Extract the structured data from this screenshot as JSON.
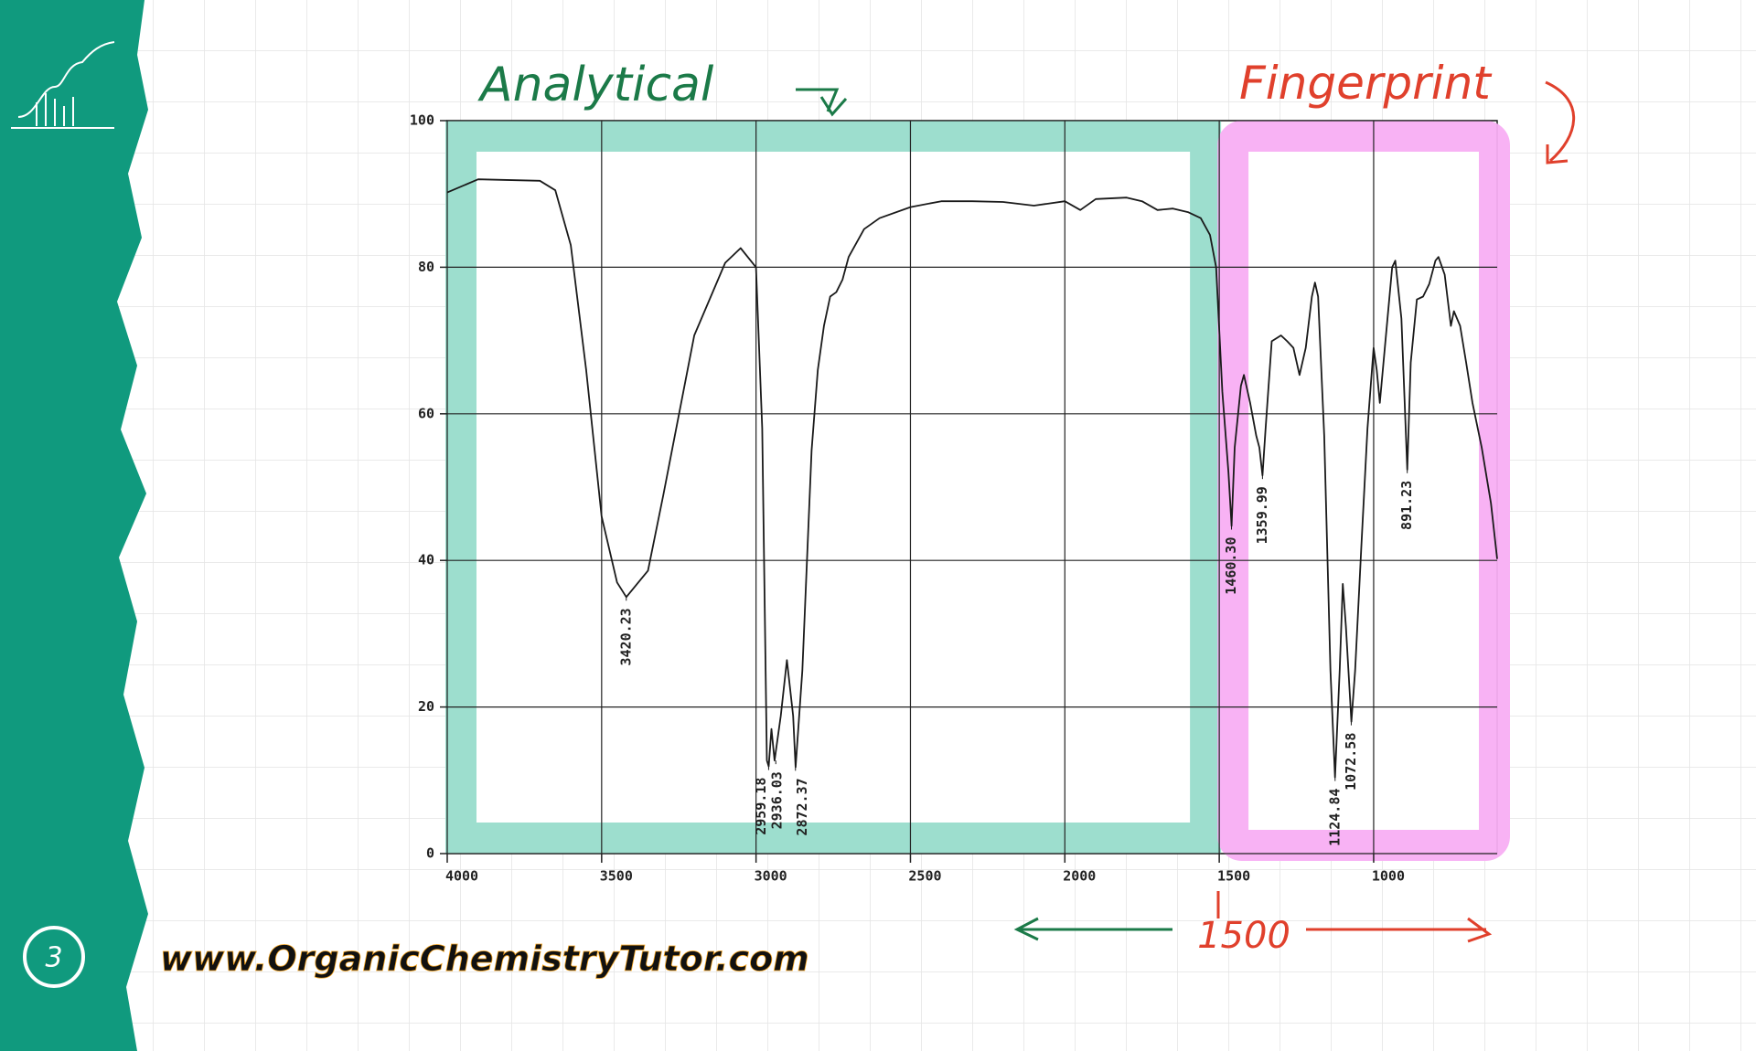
{
  "chart_data": {
    "type": "line",
    "title": "Analytical",
    "subtitle": "Fingerprint",
    "x": [
      4000,
      3900,
      3700,
      3650,
      3600,
      3550,
      3500,
      3450,
      3420,
      3350,
      3300,
      3200,
      3100,
      3050,
      3000,
      2980,
      2965,
      2959,
      2950,
      2940,
      2920,
      2900,
      2880,
      2872,
      2850,
      2820,
      2800,
      2780,
      2760,
      2740,
      2720,
      2700,
      2650,
      2600,
      2500,
      2400,
      2300,
      2200,
      2100,
      2000,
      1950,
      1900,
      1800,
      1750,
      1700,
      1650,
      1600,
      1560,
      1530,
      1510,
      1490,
      1470,
      1460,
      1450,
      1430,
      1420,
      1400,
      1380,
      1370,
      1360,
      1350,
      1330,
      1300,
      1280,
      1260,
      1240,
      1220,
      1200,
      1190,
      1180,
      1160,
      1140,
      1125,
      1110,
      1100,
      1090,
      1072,
      1060,
      1040,
      1020,
      1000,
      990,
      980,
      960,
      940,
      930,
      910,
      891,
      880,
      860,
      840,
      820,
      800,
      790,
      770,
      750,
      740,
      720,
      700,
      680,
      650,
      620,
      600
    ],
    "values": [
      90.2,
      92,
      91.8,
      90.5,
      83,
      66,
      46,
      37,
      35,
      38.6,
      49,
      70.7,
      80.6,
      82.6,
      80,
      58,
      12.7,
      11.9,
      17,
      12.7,
      18.8,
      26.4,
      18.8,
      11.8,
      25,
      55,
      66,
      72,
      76,
      76.6,
      78.3,
      81.4,
      85.2,
      86.7,
      88.2,
      89,
      89,
      88.9,
      88.4,
      89,
      87.8,
      89.3,
      89.5,
      89,
      87.8,
      88,
      87.5,
      86.7,
      84.4,
      80,
      63,
      52,
      44.7,
      55.4,
      63.8,
      65.3,
      61.5,
      57,
      55.4,
      51.6,
      58,
      69.9,
      70.7,
      69.9,
      69,
      65.3,
      69,
      76,
      77.9,
      76,
      57,
      25,
      10.4,
      25,
      36.8,
      31,
      18,
      25,
      41.7,
      58,
      69,
      66,
      61.5,
      70.7,
      80,
      80.9,
      73,
      52.4,
      67,
      75.6,
      76,
      77.7,
      80.9,
      81.4,
      79,
      72,
      74,
      72,
      66.9,
      61.5,
      55.4,
      47.8,
      40.2
    ],
    "color": "#1a1a1a",
    "xlim": [
      4000,
      600
    ],
    "xticks": [
      4000,
      3500,
      3000,
      2500,
      2000,
      1500,
      1000
    ],
    "ylim": [
      0,
      100
    ],
    "yticks": [
      0,
      20,
      40,
      60,
      80,
      100
    ],
    "grid": true,
    "regions": [
      {
        "name": "Analytical",
        "from": 4000,
        "to": 1500,
        "color": "#98dccb"
      },
      {
        "name": "Fingerprint",
        "from": 1500,
        "to": 600,
        "color": "#f8aef3"
      }
    ],
    "peaks": [
      {
        "label": "3420.23",
        "x": 3420.23,
        "y": 35
      },
      {
        "label": "2959.18",
        "x": 2959.18,
        "y": 11.9
      },
      {
        "label": "2936.03",
        "x": 2936.03,
        "y": 12.7
      },
      {
        "label": "2872.37",
        "x": 2872.37,
        "y": 11.8
      },
      {
        "label": "1460.30",
        "x": 1460.3,
        "y": 44.7
      },
      {
        "label": "1359.99",
        "x": 1359.99,
        "y": 51.6
      },
      {
        "label": "1124.84",
        "x": 1124.84,
        "y": 10.4
      },
      {
        "label": "1072.58",
        "x": 1072.58,
        "y": 18
      },
      {
        "label": "891.23",
        "x": 891.23,
        "y": 52.4
      }
    ],
    "divider_label": "1500",
    "footer": "www.OrganicChemistryTutor.com",
    "page_number": "3"
  }
}
